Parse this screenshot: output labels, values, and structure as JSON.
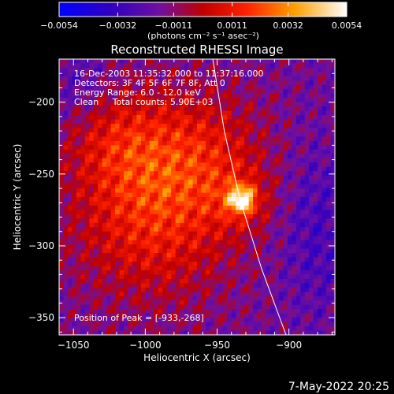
{
  "chart_data": {
    "type": "heatmap",
    "title": "Reconstructed RHESSI Image",
    "xlabel": "Heliocentric X (arcsec)",
    "ylabel": "Heliocentric Y (arcsec)",
    "xlim": [
      -1060,
      -868
    ],
    "ylim": [
      -362,
      -170
    ],
    "x_ticks": [
      -1050,
      -1000,
      -950,
      -900
    ],
    "y_ticks": [
      -200,
      -250,
      -300,
      -350
    ],
    "x_tick_labels": [
      "−1050",
      "−1000",
      "−950",
      "−900"
    ],
    "y_tick_labels": [
      "−200",
      "−250",
      "−300",
      "−350"
    ],
    "colorbar": {
      "min": -0.0054,
      "max": 0.0054,
      "ticks": [
        -0.0054,
        -0.0032,
        -0.0011,
        0.0011,
        0.0032,
        0.0054
      ],
      "tick_labels": [
        "−0.0054",
        "−0.0032",
        "−0.0011",
        "0.0011",
        "0.0032",
        "0.0054"
      ],
      "unit_label": "(photons cm⁻² s⁻¹ asec⁻²)"
    },
    "annotations": [
      "16-Dec-2003 11:35:32.000 to 11:37:16.000",
      "Detectors: 3F 4F 5F 6F 7F 8F, Att 0",
      "Energy Range: 6.0 - 12.0 keV",
      "Clean     Total counts: 5.90E+03"
    ],
    "peak_label": "Position of Peak = [-933,-268]",
    "peak": {
      "x": -933,
      "y": -268,
      "value": 0.0054
    },
    "limb_points": [
      [
        -953,
        -170
      ],
      [
        -945,
        -220
      ],
      [
        -934,
        -268
      ],
      [
        -919,
        -316
      ],
      [
        -902,
        -362
      ]
    ],
    "grid": false
  },
  "footer": {
    "timestamp": "7-May-2022 20:25"
  }
}
